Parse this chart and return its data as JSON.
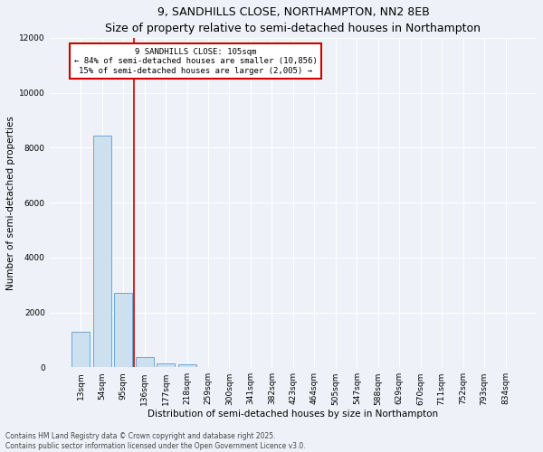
{
  "title": "9, SANDHILLS CLOSE, NORTHAMPTON, NN2 8EB",
  "subtitle": "Size of property relative to semi-detached houses in Northampton",
  "xlabel": "Distribution of semi-detached houses by size in Northampton",
  "ylabel": "Number of semi-detached properties",
  "footer": "Contains HM Land Registry data © Crown copyright and database right 2025.\nContains public sector information licensed under the Open Government Licence v3.0.",
  "categories": [
    "13sqm",
    "54sqm",
    "95sqm",
    "136sqm",
    "177sqm",
    "218sqm",
    "259sqm",
    "300sqm",
    "341sqm",
    "382sqm",
    "423sqm",
    "464sqm",
    "505sqm",
    "547sqm",
    "588sqm",
    "629sqm",
    "670sqm",
    "711sqm",
    "752sqm",
    "793sqm",
    "834sqm"
  ],
  "values": [
    1300,
    8450,
    2700,
    380,
    150,
    110,
    0,
    0,
    0,
    0,
    0,
    0,
    0,
    0,
    0,
    0,
    0,
    0,
    0,
    0,
    0
  ],
  "bar_color": "#cce0f0",
  "bar_edge_color": "#5b9bd5",
  "vline_idx": 2,
  "vline_color": "#cc0000",
  "annotation_line1": "9 SANDHILLS CLOSE: 105sqm",
  "annotation_line2": "← 84% of semi-detached houses are smaller (10,856)",
  "annotation_line3": "15% of semi-detached houses are larger (2,005) →",
  "annotation_box_color": "#ffffff",
  "annotation_box_edge": "#cc0000",
  "ylim": [
    0,
    12000
  ],
  "yticks": [
    0,
    2000,
    4000,
    6000,
    8000,
    10000,
    12000
  ],
  "background_color": "#eef2f8",
  "grid_color": "#ffffff",
  "title_fontsize": 9,
  "subtitle_fontsize": 8,
  "axis_label_fontsize": 7.5,
  "tick_fontsize": 6.5,
  "annotation_fontsize": 6.5,
  "footer_fontsize": 5.5
}
